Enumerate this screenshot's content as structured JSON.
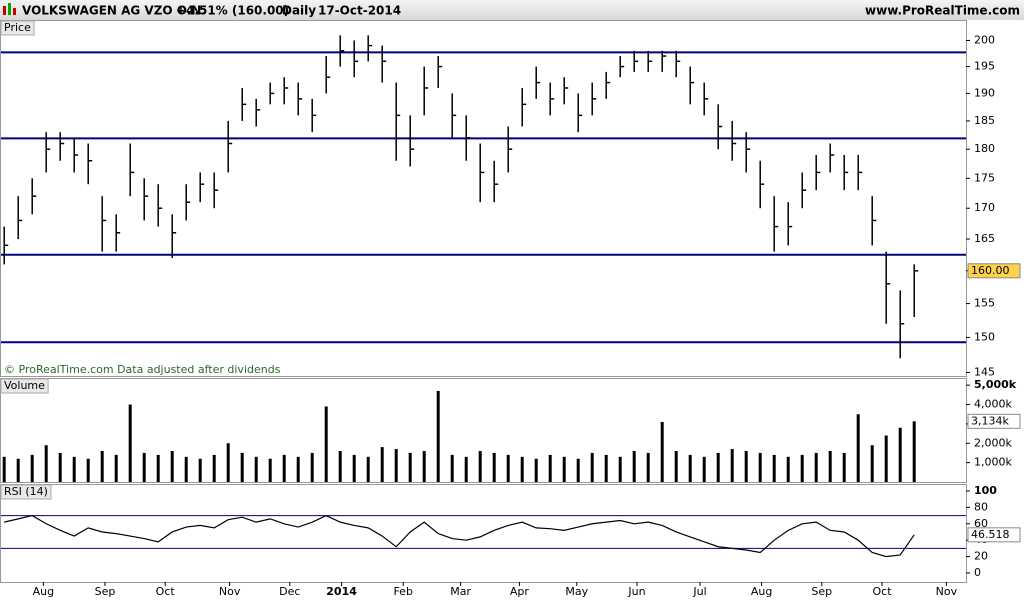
{
  "header": {
    "title": "VOLKSWAGEN AG VZO O.N.",
    "change": "+4.51% (160.00)",
    "period": "Daily",
    "date": "17-Oct-2014",
    "site": "www.ProRealTime.com"
  },
  "note": "© ProRealTime.com  Data adjusted after dividends",
  "chart_data": [
    {
      "type": "candlestick",
      "panel_label": "Price",
      "log_scale": true,
      "color": "#000000",
      "line_color": "#000080",
      "x": [
        0,
        1,
        2,
        3,
        4,
        5,
        6,
        7,
        8,
        9,
        10,
        11,
        12,
        13,
        14,
        15,
        16,
        17,
        18,
        19,
        20,
        21,
        22,
        23,
        24,
        25,
        26,
        27,
        28,
        29,
        30,
        31,
        32,
        33,
        34,
        35,
        36,
        37,
        38,
        39,
        40,
        41,
        42,
        43,
        44,
        45,
        46,
        47,
        48,
        49,
        50,
        51,
        52,
        53,
        54,
        55,
        56,
        57,
        58,
        59,
        60,
        61,
        62,
        63,
        64,
        65
      ],
      "xlim": [
        -0.3,
        68.7
      ],
      "xticks": [
        {
          "value": 2.8,
          "label": "Aug"
        },
        {
          "value": 7.2,
          "label": "Sep"
        },
        {
          "value": 11.5,
          "label": "Oct"
        },
        {
          "value": 16.1,
          "label": "Nov"
        },
        {
          "value": 20.4,
          "label": "Dec"
        },
        {
          "value": 24.1,
          "label": "2014"
        },
        {
          "value": 28.5,
          "label": "Feb"
        },
        {
          "value": 32.6,
          "label": "Mar"
        },
        {
          "value": 36.8,
          "label": "Apr"
        },
        {
          "value": 40.9,
          "label": "May"
        },
        {
          "value": 45.2,
          "label": "Jun"
        },
        {
          "value": 49.7,
          "label": "Jul"
        },
        {
          "value": 54.1,
          "label": "Aug"
        },
        {
          "value": 58.4,
          "label": "Sep"
        },
        {
          "value": 62.7,
          "label": "Oct"
        },
        {
          "value": 67.3,
          "label": "Nov"
        }
      ],
      "close": [
        164,
        168,
        172,
        180,
        181,
        179,
        178,
        168,
        166,
        176,
        172,
        170,
        166,
        171,
        174,
        173,
        181,
        188,
        187,
        190,
        191,
        189,
        186,
        193,
        198,
        196,
        199,
        196,
        186,
        180,
        191,
        195,
        186,
        182,
        176,
        174,
        180,
        188,
        192,
        189,
        191,
        186,
        189,
        192,
        195,
        196,
        196,
        197,
        196,
        192,
        189,
        184,
        181,
        180,
        174,
        167,
        167,
        173,
        176,
        179,
        176,
        176,
        168,
        158,
        152,
        160
      ],
      "high": [
        167,
        172,
        175,
        183,
        183,
        182,
        181,
        172,
        169,
        181,
        175,
        174,
        169,
        174,
        176,
        176,
        185,
        191,
        189,
        192,
        193,
        192,
        189,
        197,
        201,
        200,
        201,
        199,
        192,
        186,
        195,
        197,
        190,
        186,
        181,
        178,
        184,
        191,
        195,
        192,
        193,
        190,
        192,
        194,
        197,
        198,
        198,
        198,
        198,
        195,
        192,
        188,
        185,
        183,
        178,
        172,
        171,
        176,
        179,
        181,
        179,
        179,
        172,
        163,
        157,
        161
      ],
      "low": [
        161,
        165,
        169,
        176,
        178,
        176,
        174,
        163,
        163,
        172,
        168,
        167,
        162,
        168,
        171,
        170,
        176,
        185,
        184,
        188,
        188,
        186,
        183,
        190,
        195,
        193,
        196,
        192,
        178,
        177,
        186,
        191,
        182,
        178,
        171,
        171,
        176,
        184,
        189,
        186,
        188,
        183,
        186,
        189,
        193,
        194,
        194,
        194,
        193,
        188,
        186,
        180,
        178,
        176,
        170,
        163,
        164,
        170,
        173,
        176,
        173,
        173,
        164,
        152,
        147,
        153
      ],
      "hlines": [
        197.7,
        181.9,
        162.5,
        149.3
      ],
      "ylim": [
        144.5,
        204
      ],
      "yticks": [
        145,
        150,
        155,
        160,
        165,
        170,
        175,
        180,
        185,
        190,
        195,
        200
      ],
      "last_value": {
        "value": 160,
        "label": "160.00"
      }
    },
    {
      "type": "bar",
      "panel_label": "Volume",
      "color": "#000000",
      "values": [
        1300,
        1200,
        1400,
        1900,
        1500,
        1300,
        1200,
        1600,
        1400,
        4000,
        1500,
        1400,
        1600,
        1300,
        1200,
        1400,
        2000,
        1500,
        1300,
        1200,
        1400,
        1300,
        1500,
        3900,
        1600,
        1400,
        1300,
        1800,
        1700,
        1500,
        1600,
        4700,
        1400,
        1300,
        1600,
        1500,
        1400,
        1300,
        1200,
        1400,
        1300,
        1200,
        1500,
        1400,
        1300,
        1600,
        1500,
        3100,
        1600,
        1400,
        1300,
        1500,
        1700,
        1600,
        1500,
        1400,
        1300,
        1400,
        1500,
        1600,
        1500,
        3500,
        1900,
        2400,
        2800,
        3134
      ],
      "ylim": [
        0,
        5370
      ],
      "yticks": [
        {
          "value": 1000,
          "label": "1,000k"
        },
        {
          "value": 2000,
          "label": "2,000k"
        },
        {
          "value": 3000,
          "label": "3,000k"
        },
        {
          "value": 4000,
          "label": "4,000k"
        },
        {
          "value": 5000,
          "label": "5,000k"
        }
      ],
      "last_value": {
        "value": 3134,
        "label": "3,134k"
      }
    },
    {
      "type": "line",
      "panel_label": "RSI (14)",
      "color": "#000000",
      "line_color": "#000080",
      "values": [
        62,
        66,
        70,
        60,
        52,
        45,
        55,
        50,
        48,
        45,
        42,
        38,
        50,
        56,
        58,
        55,
        65,
        68,
        62,
        66,
        60,
        56,
        62,
        70,
        62,
        58,
        55,
        45,
        32,
        50,
        62,
        48,
        42,
        40,
        44,
        52,
        58,
        62,
        55,
        54,
        52,
        56,
        60,
        62,
        64,
        60,
        62,
        58,
        50,
        44,
        38,
        32,
        30,
        28,
        25,
        40,
        52,
        60,
        62,
        52,
        50,
        40,
        25,
        20,
        22,
        46.518
      ],
      "hlines": [
        70,
        30
      ],
      "ylim": [
        -11,
        108.5
      ],
      "yticks": [
        0,
        20,
        40,
        60,
        80,
        100
      ],
      "last_value": {
        "value": 46.518,
        "label": "46.518"
      }
    }
  ]
}
